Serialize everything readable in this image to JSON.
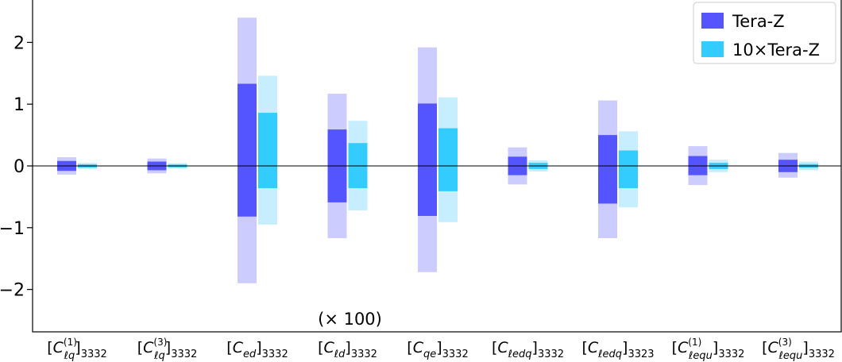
{
  "chart_data": {
    "type": "bar",
    "categories": [
      {
        "base": "C",
        "sub": "ℓq",
        "sup": "(1)",
        "outer": "3332"
      },
      {
        "base": "C",
        "sub": "ℓq",
        "sup": "(3)",
        "outer": "3332"
      },
      {
        "base": "C",
        "sub": "ed",
        "sup": "",
        "outer": "3332"
      },
      {
        "base": "C",
        "sub": "ℓd",
        "sup": "",
        "outer": "3332"
      },
      {
        "base": "C",
        "sub": "qe",
        "sup": "",
        "outer": "3332"
      },
      {
        "base": "C",
        "sub": "ℓedq",
        "sup": "",
        "outer": "3332"
      },
      {
        "base": "C",
        "sub": "ℓedq",
        "sup": "",
        "outer": "3323"
      },
      {
        "base": "C",
        "sub": "ℓequ",
        "sup": "(1)",
        "outer": "3332"
      },
      {
        "base": "C",
        "sub": "ℓequ",
        "sup": "(3)",
        "outer": "3332"
      }
    ],
    "series": [
      {
        "name": "Tera-Z",
        "color": "#5555ff",
        "light_color": "#ccccff",
        "inner": [
          [
            -0.08,
            0.08
          ],
          [
            -0.07,
            0.07
          ],
          [
            -0.82,
            1.33
          ],
          [
            -0.59,
            0.59
          ],
          [
            -0.81,
            1.01
          ],
          [
            -0.15,
            0.15
          ],
          [
            -0.61,
            0.5
          ],
          [
            -0.15,
            0.16
          ],
          [
            -0.1,
            0.1
          ]
        ],
        "outer": [
          [
            -0.14,
            0.14
          ],
          [
            -0.12,
            0.12
          ],
          [
            -1.9,
            2.4
          ],
          [
            -1.17,
            1.17
          ],
          [
            -1.72,
            1.92
          ],
          [
            -0.3,
            0.3
          ],
          [
            -1.17,
            1.06
          ],
          [
            -0.31,
            0.32
          ],
          [
            -0.19,
            0.21
          ]
        ]
      },
      {
        "name": "10×Tera-Z",
        "color": "#33ccff",
        "light_color": "#c6eeff",
        "inner": [
          [
            -0.025,
            0.025
          ],
          [
            -0.022,
            0.022
          ],
          [
            -0.36,
            0.86
          ],
          [
            -0.36,
            0.37
          ],
          [
            -0.41,
            0.61
          ],
          [
            -0.05,
            0.05
          ],
          [
            -0.36,
            0.25
          ],
          [
            -0.05,
            0.05
          ],
          [
            -0.03,
            0.03
          ]
        ],
        "outer": [
          [
            -0.05,
            0.05
          ],
          [
            -0.045,
            0.045
          ],
          [
            -0.95,
            1.46
          ],
          [
            -0.72,
            0.73
          ],
          [
            -0.91,
            1.11
          ],
          [
            -0.09,
            0.09
          ],
          [
            -0.67,
            0.56
          ],
          [
            -0.1,
            0.1
          ],
          [
            -0.07,
            0.07
          ]
        ]
      }
    ],
    "yticks": [
      {
        "value": 2,
        "label": "2"
      },
      {
        "value": 1,
        "label": "1"
      },
      {
        "value": 0,
        "label": "0"
      },
      {
        "value": -1,
        "label": "−1"
      },
      {
        "value": -2,
        "label": "−2"
      }
    ],
    "ylim": [
      -2.68,
      2.68
    ],
    "annotation": {
      "text": "(× 100)",
      "category_index": 3
    },
    "legend_position": "top-right",
    "grid": false,
    "title": "",
    "xlabel": "",
    "ylabel": ""
  }
}
